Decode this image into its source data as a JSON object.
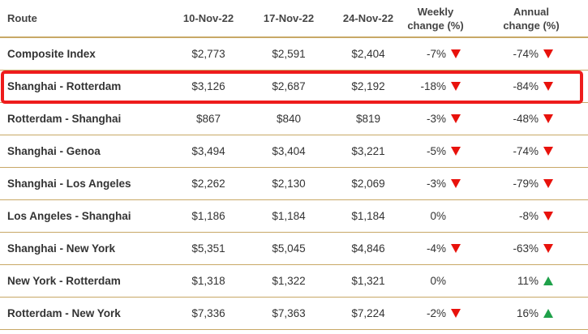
{
  "columns": {
    "route": "Route",
    "d1": "10-Nov-22",
    "d2": "17-Nov-22",
    "d3": "24-Nov-22",
    "weekly_line1": "Weekly",
    "weekly_line2": "change (%)",
    "annual_line1": "Annual",
    "annual_line2": "change (%)"
  },
  "rows": [
    {
      "route": "Composite Index",
      "d1": "$2,773",
      "d2": "$2,591",
      "d3": "$2,404",
      "weekly": "-7%",
      "weekly_dir": "down",
      "annual": "-74%",
      "annual_dir": "down"
    },
    {
      "route": "Shanghai - Rotterdam",
      "d1": "$3,126",
      "d2": "$2,687",
      "d3": "$2,192",
      "weekly": "-18%",
      "weekly_dir": "down",
      "annual": "-84%",
      "annual_dir": "down",
      "highlighted": true
    },
    {
      "route": "Rotterdam - Shanghai",
      "d1": "$867",
      "d2": "$840",
      "d3": "$819",
      "weekly": "-3%",
      "weekly_dir": "down",
      "annual": "-48%",
      "annual_dir": "down"
    },
    {
      "route": "Shanghai - Genoa",
      "d1": "$3,494",
      "d2": "$3,404",
      "d3": "$3,221",
      "weekly": "-5%",
      "weekly_dir": "down",
      "annual": "-74%",
      "annual_dir": "down"
    },
    {
      "route": "Shanghai - Los Angeles",
      "d1": "$2,262",
      "d2": "$2,130",
      "d3": "$2,069",
      "weekly": "-3%",
      "weekly_dir": "down",
      "annual": "-79%",
      "annual_dir": "down"
    },
    {
      "route": "Los Angeles - Shanghai",
      "d1": "$1,186",
      "d2": "$1,184",
      "d3": "$1,184",
      "weekly": "0%",
      "weekly_dir": "none",
      "annual": "-8%",
      "annual_dir": "down"
    },
    {
      "route": "Shanghai - New York",
      "d1": "$5,351",
      "d2": "$5,045",
      "d3": "$4,846",
      "weekly": "-4%",
      "weekly_dir": "down",
      "annual": "-63%",
      "annual_dir": "down"
    },
    {
      "route": "New York - Rotterdam",
      "d1": "$1,318",
      "d2": "$1,322",
      "d3": "$1,321",
      "weekly": "0%",
      "weekly_dir": "none",
      "annual": "11%",
      "annual_dir": "up"
    },
    {
      "route": "Rotterdam - New York",
      "d1": "$7,336",
      "d2": "$7,363",
      "d3": "$7,224",
      "weekly": "-2%",
      "weekly_dir": "down",
      "annual": "16%",
      "annual_dir": "up"
    }
  ],
  "colors": {
    "divider": "#c8a866",
    "highlight": "#ee1c1c",
    "arrow_down": "#e8120c",
    "arrow_up": "#1fa14a"
  }
}
